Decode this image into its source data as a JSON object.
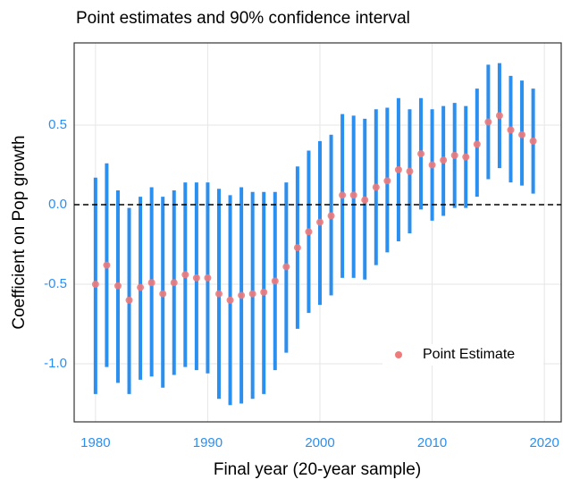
{
  "chart_data": {
    "type": "errorbar",
    "title": "Point estimates and 90% confidence interval",
    "x_label": "Final year (20-year sample)",
    "y_label": "Coefficient on Pop growth",
    "x": [
      1980,
      1981,
      1982,
      1983,
      1984,
      1985,
      1986,
      1987,
      1988,
      1989,
      1990,
      1991,
      1992,
      1993,
      1994,
      1995,
      1996,
      1997,
      1998,
      1999,
      2000,
      2001,
      2002,
      2003,
      2004,
      2005,
      2006,
      2007,
      2008,
      2009,
      2010,
      2011,
      2012,
      2013,
      2014,
      2015,
      2016,
      2017,
      2018,
      2019
    ],
    "series": [
      {
        "name": "Point Estimate",
        "color": "#ef7a7a",
        "ci_color": "#2b8ff0",
        "values": [
          -0.5,
          -0.38,
          -0.51,
          -0.6,
          -0.52,
          -0.49,
          -0.56,
          -0.49,
          -0.44,
          -0.46,
          -0.46,
          -0.56,
          -0.6,
          -0.57,
          -0.56,
          -0.55,
          -0.48,
          -0.39,
          -0.27,
          -0.17,
          -0.11,
          -0.07,
          0.06,
          0.06,
          0.03,
          0.11,
          0.15,
          0.22,
          0.21,
          0.32,
          0.25,
          0.28,
          0.31,
          0.3,
          0.38,
          0.52,
          0.56,
          0.47,
          0.44,
          0.4
        ],
        "lower": [
          -1.19,
          -1.02,
          -1.12,
          -1.19,
          -1.1,
          -1.08,
          -1.15,
          -1.07,
          -1.02,
          -1.04,
          -1.06,
          -1.22,
          -1.26,
          -1.25,
          -1.22,
          -1.19,
          -1.04,
          -0.93,
          -0.78,
          -0.68,
          -0.63,
          -0.57,
          -0.46,
          -0.46,
          -0.47,
          -0.38,
          -0.3,
          -0.23,
          -0.18,
          -0.03,
          -0.1,
          -0.07,
          -0.02,
          -0.02,
          0.05,
          0.16,
          0.23,
          0.14,
          0.12,
          0.07
        ],
        "upper": [
          0.17,
          0.26,
          0.09,
          -0.02,
          0.05,
          0.11,
          0.05,
          0.09,
          0.14,
          0.14,
          0.14,
          0.1,
          0.06,
          0.11,
          0.08,
          0.08,
          0.08,
          0.14,
          0.24,
          0.34,
          0.4,
          0.44,
          0.57,
          0.56,
          0.54,
          0.6,
          0.61,
          0.67,
          0.6,
          0.67,
          0.6,
          0.62,
          0.64,
          0.62,
          0.73,
          0.88,
          0.89,
          0.81,
          0.78,
          0.73
        ]
      }
    ],
    "reference_line": 0,
    "xlim": [
      1978.1,
      2021.5
    ],
    "ylim": [
      -1.365,
      1.017
    ],
    "xticks": [
      1980,
      1990,
      2000,
      2010,
      2020
    ],
    "yticks": [
      {
        "value": -1,
        "label": "-1.0"
      },
      -0.5,
      {
        "value": 0,
        "label": "0.0"
      },
      0.5
    ],
    "grid": true,
    "legend_position": "bottom-right"
  }
}
